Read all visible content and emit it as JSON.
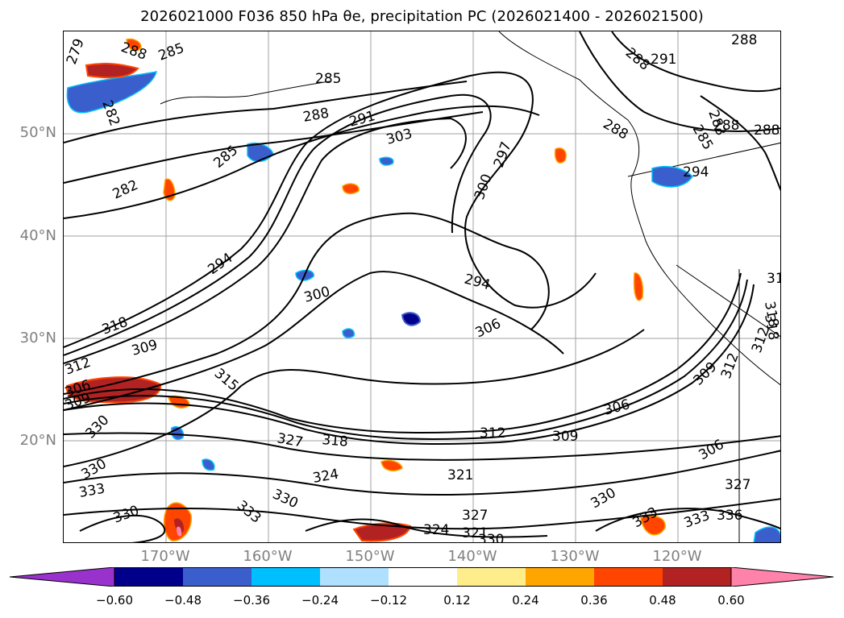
{
  "title": "2026021000 F036 850 hPa θe, precipitation PC (2026021400 - 2026021500)",
  "map": {
    "latitude_labels": [
      "50°N",
      "40°N",
      "30°N",
      "20°N"
    ],
    "longitude_labels": [
      "170°W",
      "160°W",
      "150°W",
      "140°W",
      "130°W",
      "120°W"
    ],
    "contour_labels": [
      "279",
      "288",
      "285",
      "282",
      "285",
      "288",
      "291",
      "303",
      "297",
      "300",
      "285",
      "282",
      "294",
      "300",
      "294",
      "306",
      "309",
      "312",
      "318",
      "306",
      "309",
      "315",
      "330",
      "327",
      "318",
      "312",
      "309",
      "306",
      "306",
      "330",
      "333",
      "324",
      "321",
      "330",
      "333",
      "330",
      "327",
      "324",
      "321",
      "330",
      "330",
      "333",
      "333",
      "336",
      "327",
      "288",
      "291",
      "288",
      "285",
      "288",
      "294",
      "288",
      "312",
      "318",
      "309",
      "312",
      "288",
      "283",
      "31",
      "318"
    ]
  },
  "colorbar": {
    "ticks": [
      "−0.60",
      "−0.48",
      "−0.36",
      "−0.24",
      "−0.12",
      "0.12",
      "0.24",
      "0.36",
      "0.48",
      "0.60"
    ],
    "colors": [
      "#9932cc",
      "#00008b",
      "#3a5fcd",
      "#00bfff",
      "#b0e0ff",
      "#ffffff",
      "#ffec8b",
      "#ffa500",
      "#ff4500",
      "#b22222",
      "#ff82ab"
    ]
  }
}
